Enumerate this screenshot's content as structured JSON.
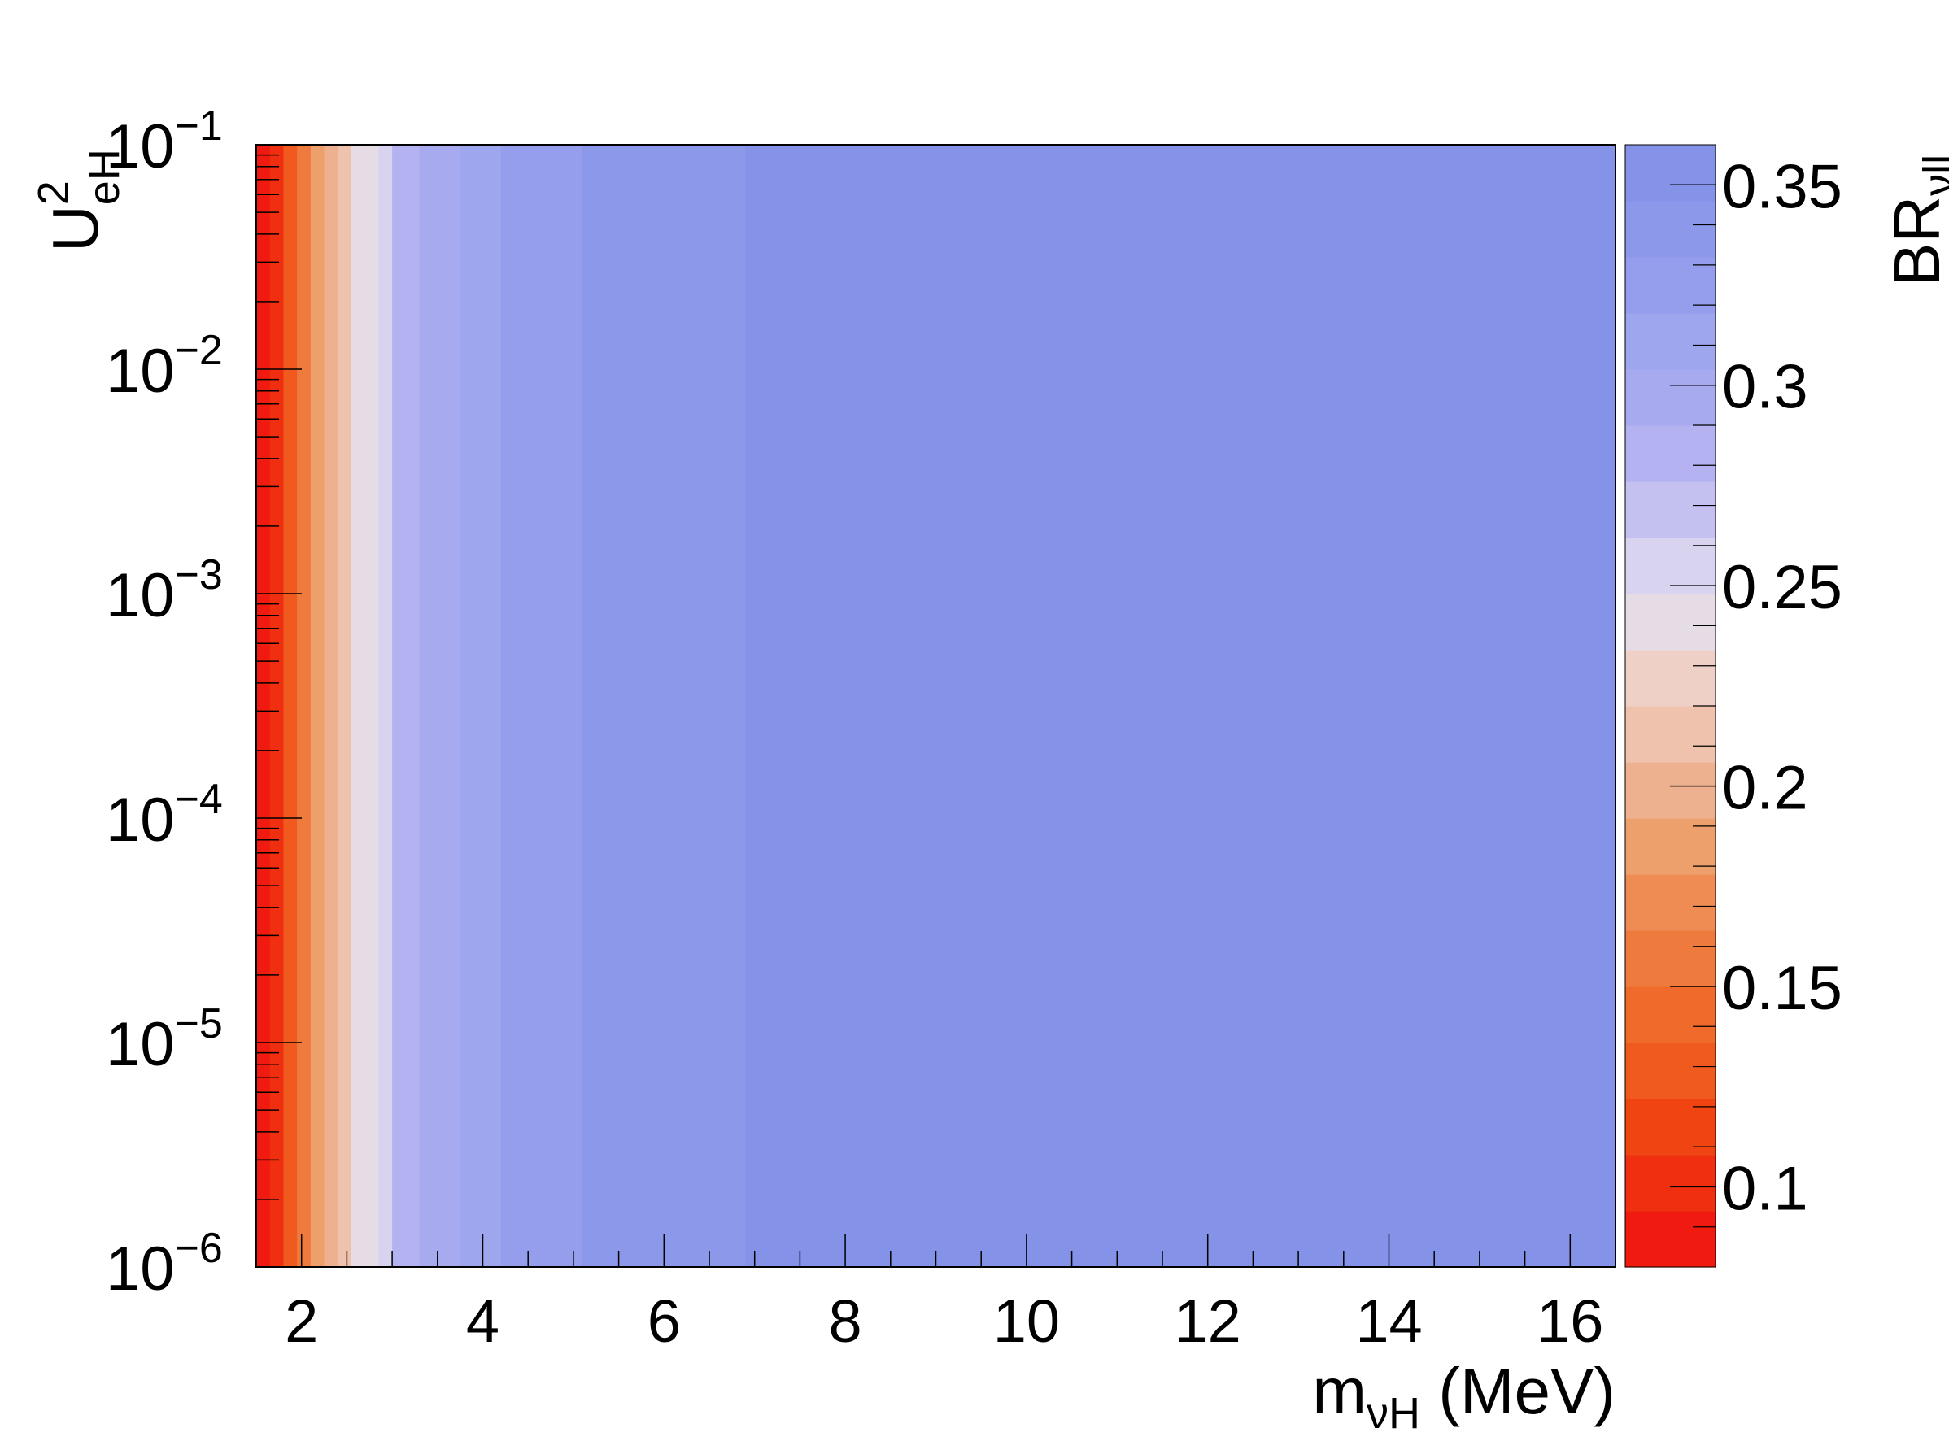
{
  "chart_data": {
    "type": "heatmap",
    "title": "",
    "x_axis": {
      "range": [
        1.5,
        16.5
      ],
      "ticks": [
        2,
        4,
        6,
        8,
        10,
        12,
        14,
        16
      ],
      "tick_labels": [
        "2",
        "4",
        "6",
        "8",
        "10",
        "12",
        "14",
        "16"
      ],
      "label_main": "m",
      "label_sub": "νH",
      "label_suffix": " (MeV)"
    },
    "y_axis": {
      "scale": "log",
      "range": [
        1e-06,
        0.1
      ],
      "label_base": "U",
      "label_sup": "2",
      "label_sub": "eH",
      "ticks": [
        {
          "value": 1e-06,
          "base": "10",
          "exp": "−6"
        },
        {
          "value": 1e-05,
          "base": "10",
          "exp": "−5"
        },
        {
          "value": 0.0001,
          "base": "10",
          "exp": "−4"
        },
        {
          "value": 0.001,
          "base": "10",
          "exp": "−3"
        },
        {
          "value": 0.01,
          "base": "10",
          "exp": "−2"
        },
        {
          "value": 0.1,
          "base": "10",
          "exp": "−1"
        }
      ]
    },
    "z_axis": {
      "label_main": "BR",
      "label_sub": "νll",
      "range": [
        0.08,
        0.36
      ],
      "ticks": [
        0.1,
        0.15,
        0.2,
        0.25,
        0.3,
        0.35
      ],
      "tick_labels": [
        "0.1",
        "0.15",
        "0.2",
        "0.25",
        "0.3",
        "0.35"
      ],
      "contour_levels": [
        0.08,
        0.094,
        0.108,
        0.122,
        0.136,
        0.15,
        0.164,
        0.178,
        0.192,
        0.206,
        0.22,
        0.234,
        0.248,
        0.262,
        0.276,
        0.29,
        0.304,
        0.318,
        0.332,
        0.346,
        0.36
      ],
      "level_colors": [
        "#f01a10",
        "#f02e10",
        "#f04412",
        "#f05a1e",
        "#f06a2c",
        "#ef7a3e",
        "#ee8c54",
        "#eea06c",
        "#eeb190",
        "#eec2ac",
        "#eed0c6",
        "#e6dce6",
        "#d8d4f0",
        "#c4c0f0",
        "#b4b2f0",
        "#a8aaf0",
        "#9ea6ee",
        "#949eec",
        "#8c98ea",
        "#8492e8"
      ]
    },
    "bands": [
      {
        "x": [
          1.5,
          1.65
        ],
        "z": 0.087
      },
      {
        "x": [
          1.65,
          1.8
        ],
        "z": 0.101
      },
      {
        "x": [
          1.8,
          1.95
        ],
        "z": 0.129
      },
      {
        "x": [
          1.95,
          2.1
        ],
        "z": 0.157
      },
      {
        "x": [
          2.1,
          2.25
        ],
        "z": 0.185
      },
      {
        "x": [
          2.25,
          2.4
        ],
        "z": 0.199
      },
      {
        "x": [
          2.4,
          2.55
        ],
        "z": 0.213
      },
      {
        "x": [
          2.55,
          2.85
        ],
        "z": 0.241
      },
      {
        "x": [
          2.85,
          3.0
        ],
        "z": 0.255
      },
      {
        "x": [
          3.0,
          3.3
        ],
        "z": 0.283
      },
      {
        "x": [
          3.3,
          3.75
        ],
        "z": 0.297
      },
      {
        "x": [
          3.75,
          4.2
        ],
        "z": 0.311
      },
      {
        "x": [
          4.2,
          5.1
        ],
        "z": 0.325
      },
      {
        "x": [
          5.1,
          6.9
        ],
        "z": 0.339
      },
      {
        "x": [
          6.9,
          16.5
        ],
        "z": 0.353
      }
    ]
  }
}
